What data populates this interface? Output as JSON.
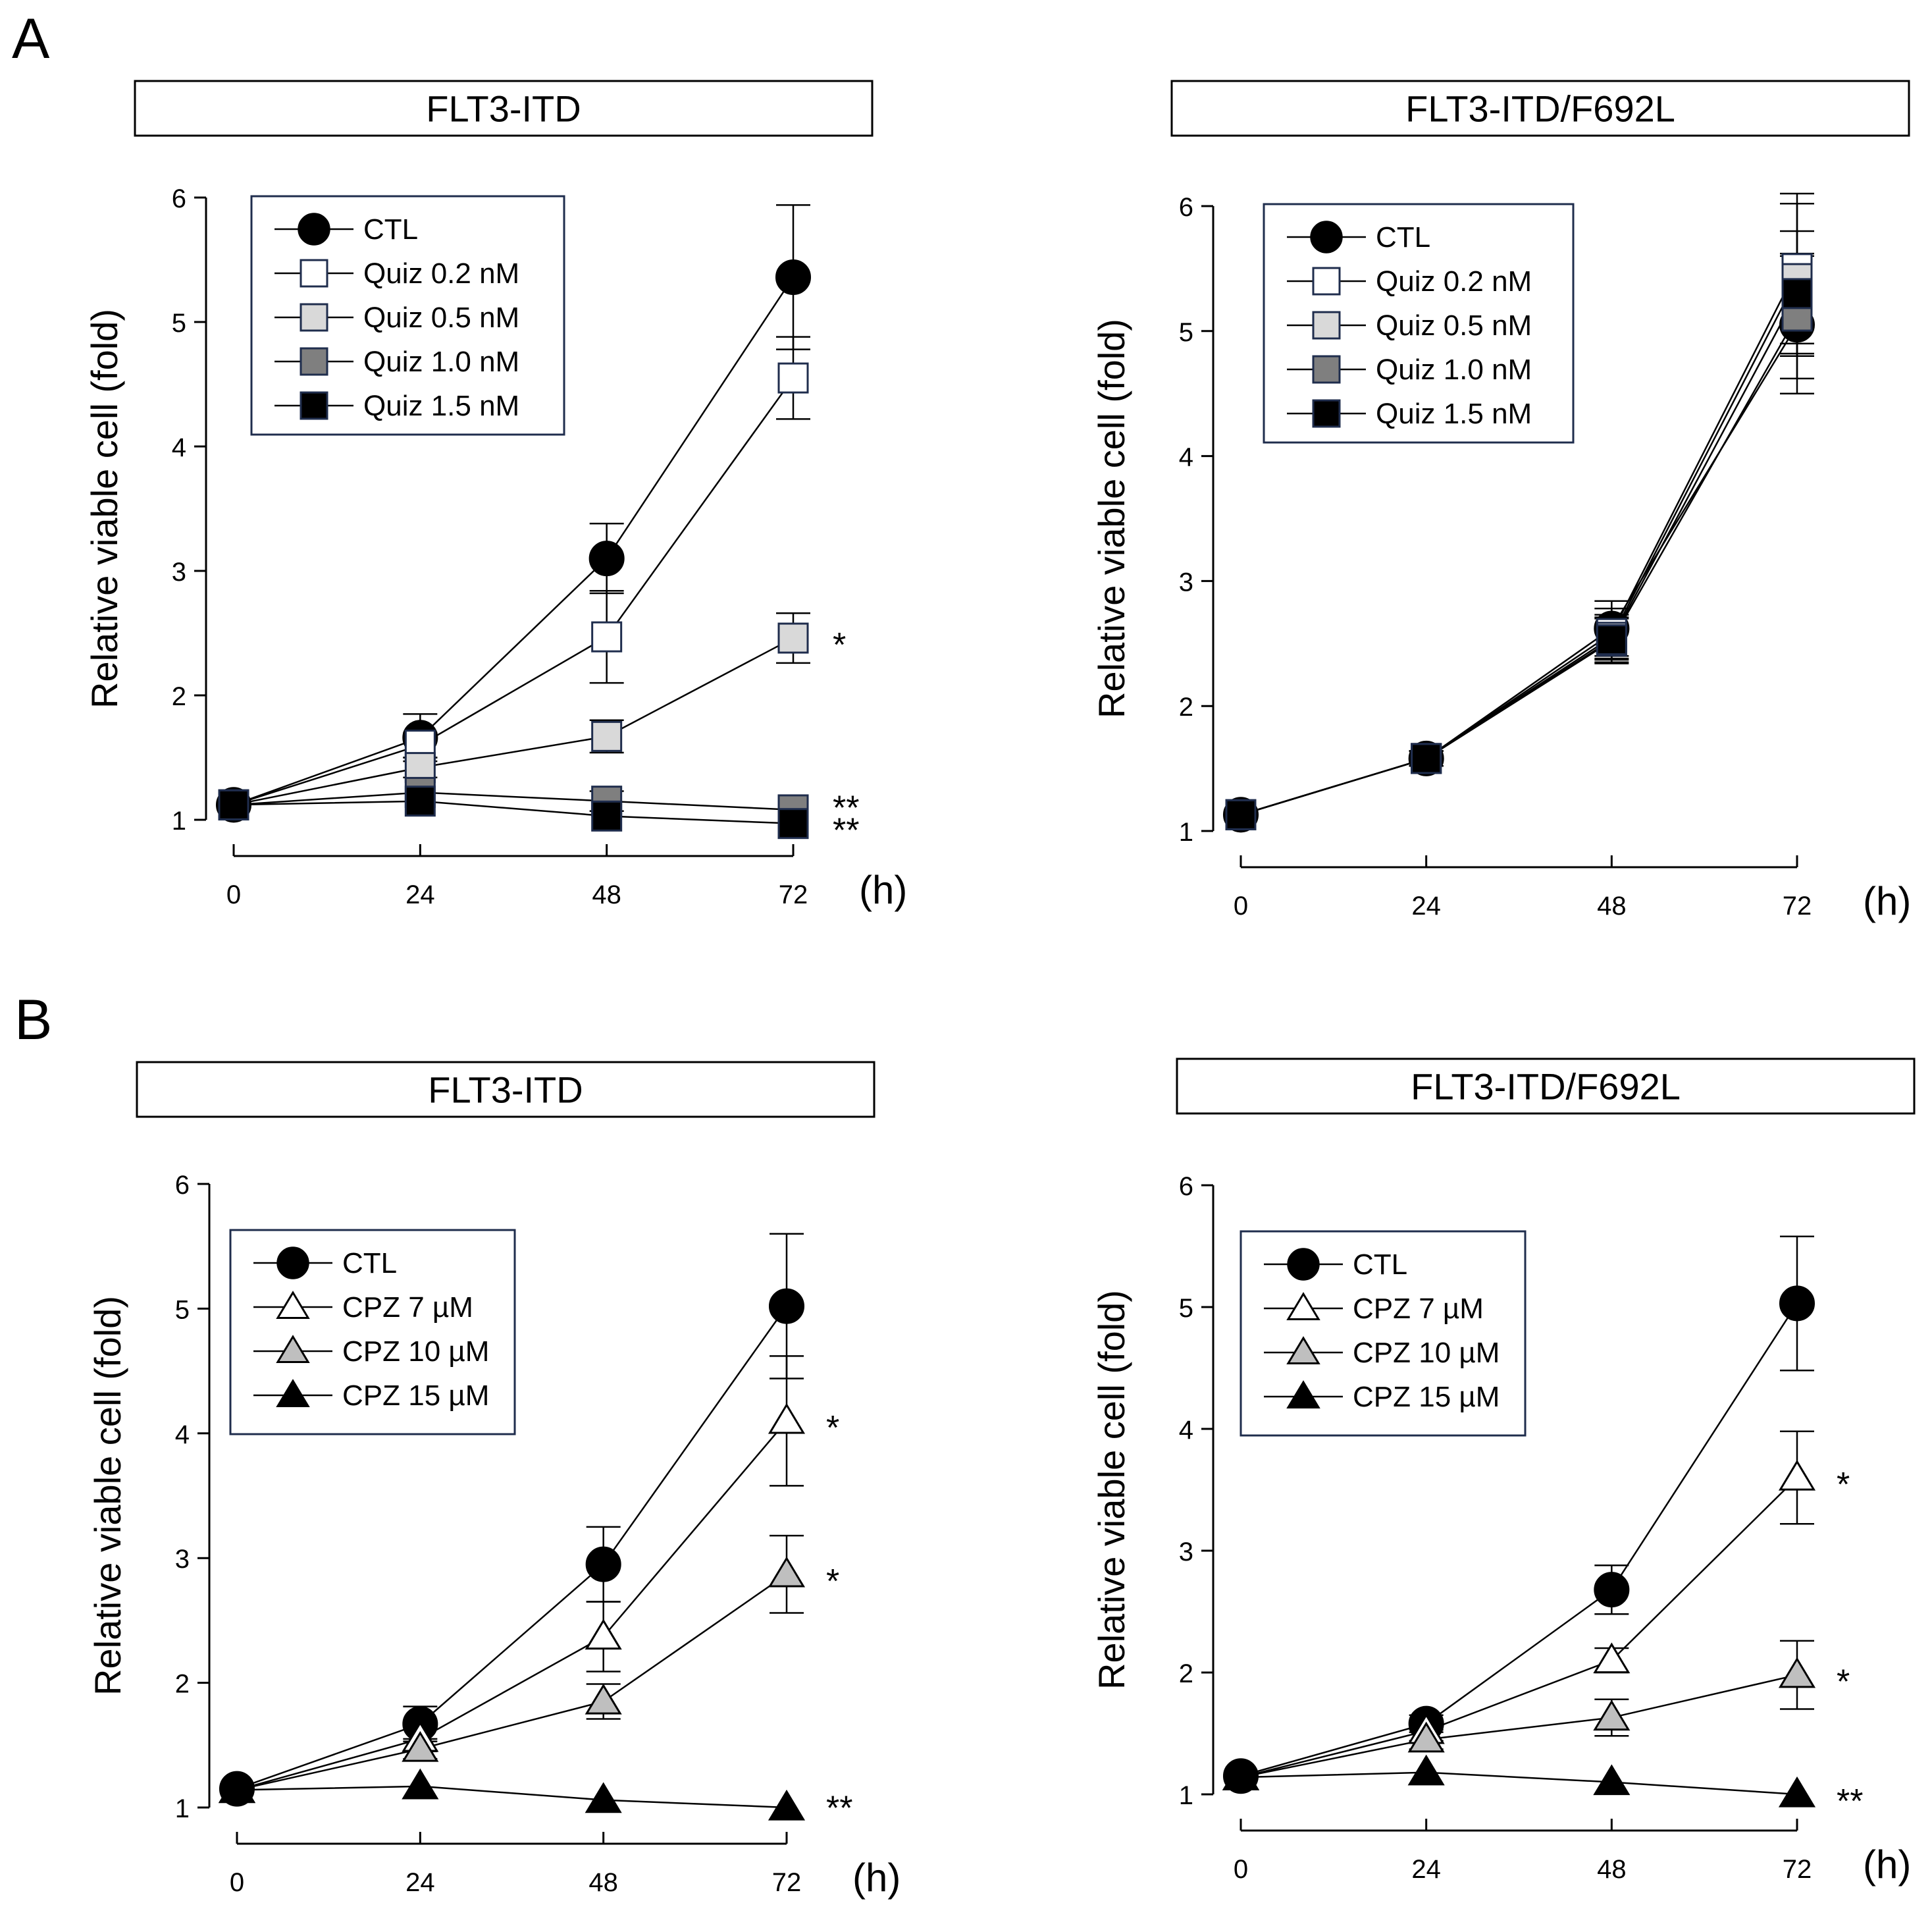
{
  "panel_labels": {
    "a": "A",
    "b": "B"
  },
  "chart_data": [
    {
      "id": "A1",
      "type": "line",
      "title": "FLT3-ITD",
      "xlabel": "",
      "x_unit": "(h)",
      "ylabel": "Relative viable cell (fold)",
      "x": [
        0,
        24,
        48,
        72
      ],
      "xlim": [
        0,
        72
      ],
      "ylim": [
        1,
        6
      ],
      "xticks": [
        "0",
        "24",
        "48",
        "72"
      ],
      "yticks": [
        "1",
        "2",
        "3",
        "4",
        "5",
        "6"
      ],
      "legend_placement": "top-left",
      "series": [
        {
          "name": "CTL",
          "marker": "circle",
          "fill": "#000000",
          "values": [
            1.12,
            1.66,
            3.1,
            5.36
          ],
          "errors": [
            0.03,
            0.19,
            0.28,
            0.58
          ]
        },
        {
          "name": "Quiz 0.2 nM",
          "marker": "square",
          "fill": "#ffffff",
          "values": [
            1.12,
            1.6,
            2.47,
            4.55
          ],
          "errors": [
            0.03,
            0.1,
            0.37,
            0.33
          ]
        },
        {
          "name": "Quiz 0.5 nM",
          "marker": "square",
          "fill": "#d9d9d9",
          "values": [
            1.12,
            1.42,
            1.67,
            2.46
          ],
          "errors": [
            0.03,
            0.08,
            0.13,
            0.2
          ]
        },
        {
          "name": "Quiz 1.0 nM",
          "marker": "square",
          "fill": "#7f7f7f",
          "values": [
            1.12,
            1.22,
            1.15,
            1.08
          ],
          "errors": [
            0.03,
            0.05,
            0.08,
            0.05
          ]
        },
        {
          "name": "Quiz 1.5 nM",
          "marker": "square",
          "fill": "#000000",
          "values": [
            1.12,
            1.15,
            1.03,
            0.97
          ],
          "errors": [
            0.03,
            0.05,
            0.05,
            0.05
          ]
        }
      ],
      "annotations": [
        {
          "text": "*",
          "x": 72,
          "y": 2.46
        },
        {
          "text": "**",
          "x": 72,
          "y": 1.15
        },
        {
          "text": "**",
          "x": 72,
          "y": 0.97
        }
      ]
    },
    {
      "id": "A2",
      "type": "line",
      "title": "FLT3-ITD/F692L",
      "xlabel": "",
      "x_unit": "(h)",
      "ylabel": "Relative viable cell (fold)",
      "x": [
        0,
        24,
        48,
        72
      ],
      "xlim": [
        0,
        72
      ],
      "ylim": [
        1,
        6
      ],
      "xticks": [
        "0",
        "24",
        "48",
        "72"
      ],
      "yticks": [
        "1",
        "2",
        "3",
        "4",
        "5",
        "6"
      ],
      "legend_placement": "top-left",
      "series": [
        {
          "name": "CTL",
          "marker": "circle",
          "fill": "#000000",
          "values": [
            1.13,
            1.58,
            2.62,
            5.05
          ],
          "errors": [
            0.03,
            0.06,
            0.22,
            0.55
          ]
        },
        {
          "name": "Quiz 0.2 nM",
          "marker": "square",
          "fill": "#ffffff",
          "values": [
            1.13,
            1.58,
            2.58,
            5.5
          ],
          "errors": [
            0.03,
            0.06,
            0.2,
            0.6
          ]
        },
        {
          "name": "Quiz 0.5 nM",
          "marker": "square",
          "fill": "#d9d9d9",
          "values": [
            1.13,
            1.58,
            2.55,
            5.42
          ],
          "errors": [
            0.03,
            0.06,
            0.18,
            0.6
          ]
        },
        {
          "name": "Quiz 1.0 nM",
          "marker": "square",
          "fill": "#7f7f7f",
          "values": [
            1.13,
            1.58,
            2.52,
            5.12
          ],
          "errors": [
            0.03,
            0.06,
            0.18,
            0.5
          ]
        },
        {
          "name": "Quiz 1.5 nM",
          "marker": "square",
          "fill": "#000000",
          "values": [
            1.13,
            1.58,
            2.53,
            5.3
          ],
          "errors": [
            0.03,
            0.06,
            0.18,
            0.5
          ]
        }
      ],
      "annotations": []
    },
    {
      "id": "B1",
      "type": "line",
      "title": "FLT3-ITD",
      "xlabel": "",
      "x_unit": "(h)",
      "ylabel": "Relative viable cell (fold)",
      "x": [
        0,
        24,
        48,
        72
      ],
      "xlim": [
        0,
        72
      ],
      "ylim": [
        1,
        6
      ],
      "xticks": [
        "0",
        "24",
        "48",
        "72"
      ],
      "yticks": [
        "1",
        "2",
        "3",
        "4",
        "5",
        "6"
      ],
      "legend_placement": "top-left",
      "series": [
        {
          "name": "CTL",
          "marker": "circle",
          "fill": "#000000",
          "values": [
            1.15,
            1.67,
            2.95,
            5.02
          ],
          "errors": [
            0.03,
            0.14,
            0.3,
            0.58
          ]
        },
        {
          "name": "CPZ 7 µM",
          "marker": "triangle",
          "fill": "#ffffff",
          "values": [
            1.14,
            1.55,
            2.37,
            4.1
          ],
          "errors": [
            0.03,
            0.1,
            0.28,
            0.52
          ]
        },
        {
          "name": "CPZ 10 µM",
          "marker": "triangle",
          "fill": "#bfbfbf",
          "values": [
            1.14,
            1.47,
            1.85,
            2.87
          ],
          "errors": [
            0.03,
            0.08,
            0.14,
            0.31
          ]
        },
        {
          "name": "CPZ 15 µM",
          "marker": "triangle",
          "fill": "#000000",
          "values": [
            1.14,
            1.17,
            1.06,
            1.0
          ],
          "errors": [
            0.03,
            0.04,
            0.03,
            0.03
          ]
        }
      ],
      "annotations": [
        {
          "text": "*",
          "x": 72,
          "y": 4.1
        },
        {
          "text": "*",
          "x": 72,
          "y": 2.87
        },
        {
          "text": "**",
          "x": 72,
          "y": 1.05
        }
      ]
    },
    {
      "id": "B2",
      "type": "line",
      "title": "FLT3-ITD/F692L",
      "xlabel": "",
      "x_unit": "(h)",
      "ylabel": "Relative viable cell (fold)",
      "x": [
        0,
        24,
        48,
        72
      ],
      "xlim": [
        0,
        72
      ],
      "ylim": [
        1,
        6
      ],
      "xticks": [
        "0",
        "24",
        "48",
        "72"
      ],
      "yticks": [
        "1",
        "2",
        "3",
        "4",
        "5",
        "6"
      ],
      "legend_placement": "top-left",
      "series": [
        {
          "name": "CTL",
          "marker": "circle",
          "fill": "#000000",
          "values": [
            1.15,
            1.58,
            2.68,
            5.03
          ],
          "errors": [
            0.03,
            0.07,
            0.2,
            0.55
          ]
        },
        {
          "name": "CPZ 7 µM",
          "marker": "triangle",
          "fill": "#ffffff",
          "values": [
            1.14,
            1.52,
            2.1,
            3.6
          ],
          "errors": [
            0.03,
            0.08,
            0.1,
            0.38
          ]
        },
        {
          "name": "CPZ 10 µM",
          "marker": "triangle",
          "fill": "#bfbfbf",
          "values": [
            1.14,
            1.45,
            1.63,
            1.98
          ],
          "errors": [
            0.03,
            0.08,
            0.15,
            0.28
          ]
        },
        {
          "name": "CPZ 15 µM",
          "marker": "triangle",
          "fill": "#000000",
          "values": [
            1.14,
            1.18,
            1.1,
            1.0
          ],
          "errors": [
            0.03,
            0.03,
            0.03,
            0.03
          ]
        }
      ],
      "annotations": [
        {
          "text": "*",
          "x": 72,
          "y": 3.6
        },
        {
          "text": "*",
          "x": 72,
          "y": 1.98
        },
        {
          "text": "**",
          "x": 72,
          "y": 1.0
        }
      ]
    }
  ]
}
